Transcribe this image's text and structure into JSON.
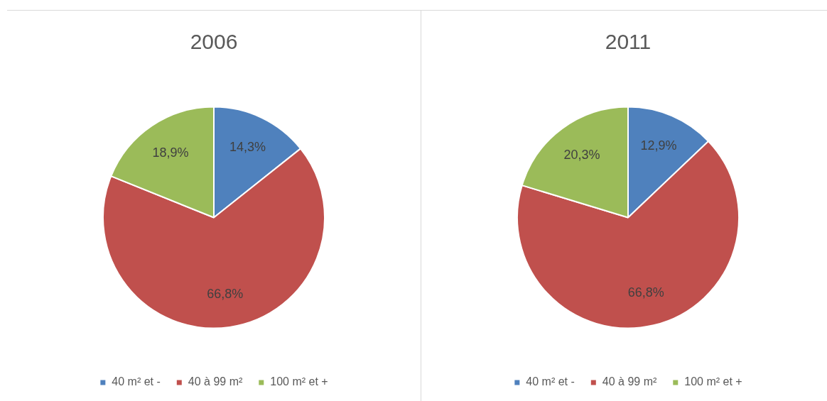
{
  "chart_data": [
    {
      "type": "pie",
      "title": "2006",
      "categories": [
        "40 m² et -",
        "40 à 99 m²",
        "100 m² et +"
      ],
      "values": [
        14.3,
        66.8,
        18.9
      ],
      "colors": [
        "#4f81bd",
        "#c0504d",
        "#9bbb59"
      ],
      "value_labels": [
        "14,3%",
        "66,8%",
        "18,9%"
      ],
      "legend": "bottom"
    },
    {
      "type": "pie",
      "title": "2011",
      "categories": [
        "40 m² et -",
        "40 à 99 m²",
        "100 m² et +"
      ],
      "values": [
        12.9,
        66.8,
        20.3
      ],
      "colors": [
        "#4f81bd",
        "#c0504d",
        "#9bbb59"
      ],
      "value_labels": [
        "12,9%",
        "66,8%",
        "20,3%"
      ],
      "legend": "bottom"
    }
  ]
}
